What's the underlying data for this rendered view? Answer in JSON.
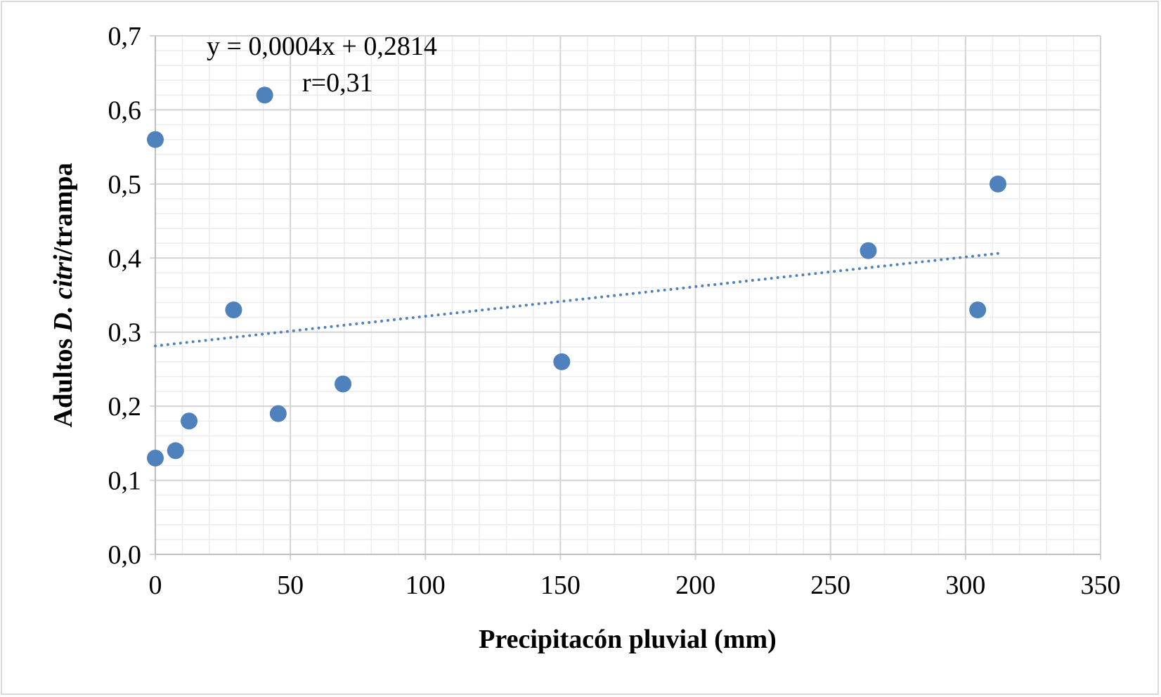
{
  "chart_data": {
    "type": "scatter",
    "title": "",
    "xlabel": "Precipitacón pluvial (mm)",
    "ylabel_parts": [
      "Adultos ",
      "D. citri",
      "/trampa"
    ],
    "xlim": [
      0,
      350
    ],
    "ylim": [
      0,
      0.7
    ],
    "x_ticks": [
      "0",
      "50",
      "100",
      "150",
      "200",
      "250",
      "300",
      "350"
    ],
    "y_ticks": [
      "0,0",
      "0,1",
      "0,2",
      "0,3",
      "0,4",
      "0,5",
      "0,6",
      "0,7"
    ],
    "grid": true,
    "series": [
      {
        "name": "Adultos D. citri/trampa",
        "color": "#4f81bd",
        "points": [
          {
            "x": 0,
            "y": 0.56
          },
          {
            "x": 40.5,
            "y": 0.62
          },
          {
            "x": 29,
            "y": 0.33
          },
          {
            "x": 0,
            "y": 0.13
          },
          {
            "x": 7.5,
            "y": 0.14
          },
          {
            "x": 12.5,
            "y": 0.18
          },
          {
            "x": 45.5,
            "y": 0.19
          },
          {
            "x": 69.5,
            "y": 0.23
          },
          {
            "x": 150.5,
            "y": 0.26
          },
          {
            "x": 264,
            "y": 0.41
          },
          {
            "x": 304.5,
            "y": 0.33
          },
          {
            "x": 312,
            "y": 0.5
          }
        ]
      }
    ],
    "trendline": {
      "type": "linear",
      "slope": 0.0004,
      "intercept": 0.2814,
      "x_range": [
        0,
        312
      ],
      "style": "dotted",
      "color": "#4f81bd"
    },
    "annotations": {
      "equation": "y = 0,0004x + 0,2814",
      "r": "r=0,31"
    }
  }
}
